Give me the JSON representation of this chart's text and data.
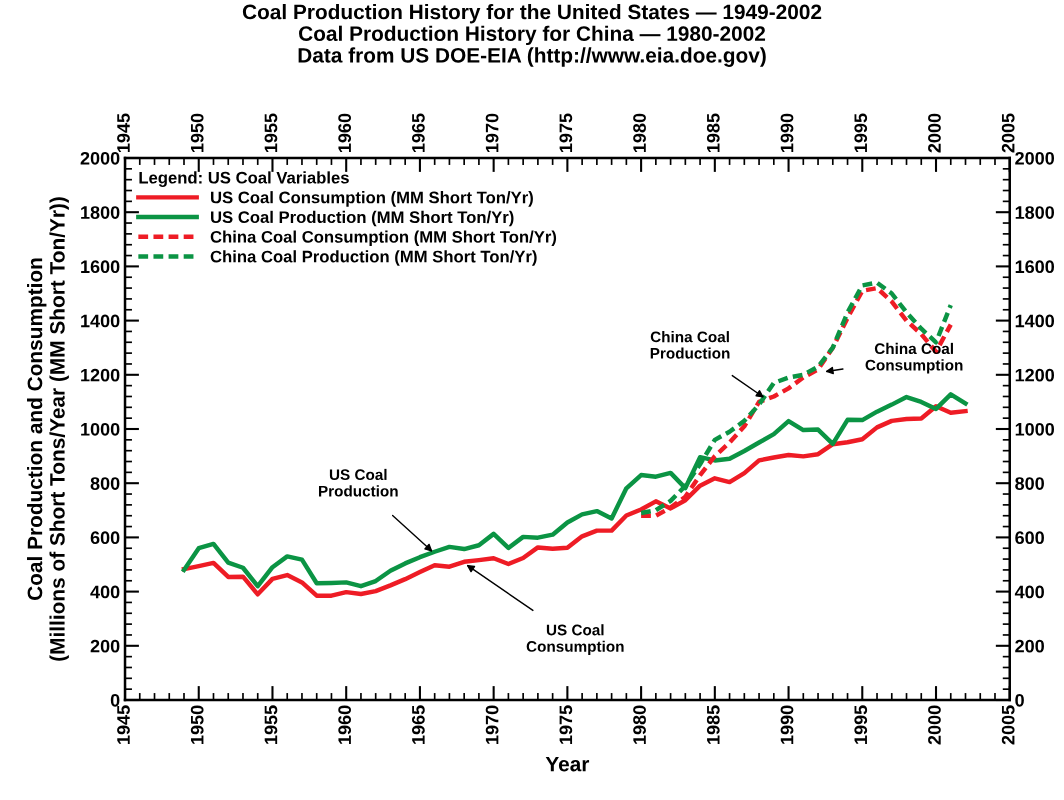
{
  "chart_data": {
    "type": "line",
    "title": "Coal Production History for the United States — 1949-2002\nCoal Production History for China — 1980-2002\nData from US DOE-EIA (http://www.eia.doe.gov)",
    "xlabel": "Year",
    "ylabel": "Coal Production and Consumption\n(Millions of Short Tons/Year (MM Short Ton/Yr))",
    "legend_title": "Legend: US Coal Variables",
    "series": [
      {
        "name": "US Coal Consumption (MM Short Ton/Yr)",
        "color": "#ee1c25",
        "line_style": "solid",
        "x": [
          1949,
          1950,
          1951,
          1952,
          1953,
          1954,
          1955,
          1956,
          1957,
          1958,
          1959,
          1960,
          1961,
          1962,
          1963,
          1964,
          1965,
          1966,
          1967,
          1968,
          1969,
          1970,
          1971,
          1972,
          1973,
          1974,
          1975,
          1976,
          1977,
          1978,
          1979,
          1980,
          1981,
          1982,
          1983,
          1984,
          1985,
          1986,
          1987,
          1988,
          1989,
          1990,
          1991,
          1992,
          1993,
          1994,
          1995,
          1996,
          1997,
          1998,
          1999,
          2000,
          2001,
          2002
        ],
        "values": [
          483,
          494,
          506,
          454,
          455,
          390,
          447,
          461,
          434,
          385,
          385,
          398,
          391,
          402,
          423,
          446,
          472,
          497,
          492,
          510,
          516,
          523,
          502,
          524,
          563,
          558,
          562,
          604,
          625,
          625,
          681,
          703,
          733,
          707,
          737,
          791,
          818,
          804,
          837,
          884,
          895,
          904,
          899,
          907,
          944,
          951,
          962,
          1006,
          1030,
          1037,
          1039,
          1084,
          1060,
          1066
        ]
      },
      {
        "name": "US Coal Production (MM Short Ton/Yr)",
        "color": "#0b9444",
        "line_style": "solid",
        "x": [
          1949,
          1950,
          1951,
          1952,
          1953,
          1954,
          1955,
          1956,
          1957,
          1958,
          1959,
          1960,
          1961,
          1962,
          1963,
          1964,
          1965,
          1966,
          1967,
          1968,
          1969,
          1970,
          1971,
          1972,
          1973,
          1974,
          1975,
          1976,
          1977,
          1978,
          1979,
          1980,
          1981,
          1982,
          1983,
          1984,
          1985,
          1986,
          1987,
          1988,
          1989,
          1990,
          1991,
          1992,
          1993,
          1994,
          1995,
          1996,
          1997,
          1998,
          1999,
          2000,
          2001,
          2002
        ],
        "values": [
          480,
          560,
          576,
          507,
          488,
          420,
          490,
          530,
          518,
          431,
          432,
          434,
          420,
          439,
          477,
          504,
          527,
          547,
          565,
          557,
          571,
          613,
          561,
          602,
          599,
          610,
          655,
          685,
          697,
          670,
          781,
          830,
          824,
          838,
          782,
          896,
          884,
          890,
          919,
          950,
          981,
          1029,
          996,
          998,
          945,
          1034,
          1033,
          1064,
          1090,
          1118,
          1100,
          1074,
          1128,
          1094
        ]
      },
      {
        "name": "China Coal Consumption (MM Short Ton/Yr)",
        "color": "#ee1c25",
        "line_style": "dashed",
        "x": [
          1980,
          1981,
          1982,
          1983,
          1984,
          1985,
          1986,
          1987,
          1988,
          1989,
          1990,
          1991,
          1992,
          1993,
          1994,
          1995,
          1996,
          1997,
          1998,
          1999,
          2000,
          2001
        ],
        "values": [
          680,
          680,
          710,
          750,
          830,
          900,
          950,
          1010,
          1100,
          1120,
          1150,
          1190,
          1220,
          1300,
          1410,
          1510,
          1520,
          1470,
          1400,
          1350,
          1285,
          1385
        ]
      },
      {
        "name": "China Coal Production (MM Short Ton/Yr)",
        "color": "#0b9444",
        "line_style": "dashed",
        "x": [
          1980,
          1981,
          1982,
          1983,
          1984,
          1985,
          1986,
          1987,
          1988,
          1989,
          1990,
          1991,
          1992,
          1993,
          1994,
          1995,
          1996,
          1997,
          1998,
          1999,
          2000,
          2001
        ],
        "values": [
          690,
          700,
          735,
          790,
          870,
          960,
          990,
          1030,
          1090,
          1170,
          1190,
          1200,
          1230,
          1300,
          1430,
          1530,
          1540,
          1500,
          1430,
          1370,
          1320,
          1457
        ]
      }
    ],
    "annotations": [
      {
        "text": "US Coal\nProduction",
        "x": 1966,
        "y": 540
      },
      {
        "text": "US Coal\nConsumption",
        "x": 1968,
        "y": 505
      },
      {
        "text": "China Coal\nProduction",
        "x": 1988.5,
        "y": 1110
      },
      {
        "text": "China Coal\nConsumption",
        "x": 1992.3,
        "y": 1210
      }
    ],
    "xlim": [
      1945,
      2005
    ],
    "xticks": [
      1945,
      1950,
      1955,
      1960,
      1965,
      1970,
      1975,
      1980,
      1985,
      1990,
      1995,
      2000,
      2005
    ],
    "x2lim": [
      1945,
      2005
    ],
    "x2ticks": [
      1945,
      1950,
      1955,
      1960,
      1965,
      1970,
      1975,
      1980,
      1985,
      1990,
      1995,
      2000,
      2005
    ],
    "ylim": [
      0,
      2000
    ],
    "yticks": [
      0,
      200,
      400,
      600,
      800,
      1000,
      1200,
      1400,
      1600,
      1800,
      2000
    ],
    "y2lim": [
      0,
      2000
    ],
    "y2ticks": [
      0,
      200,
      400,
      600,
      800,
      1000,
      1200,
      1400,
      1600,
      1800,
      2000
    ],
    "legend": "top left",
    "grid": false
  }
}
